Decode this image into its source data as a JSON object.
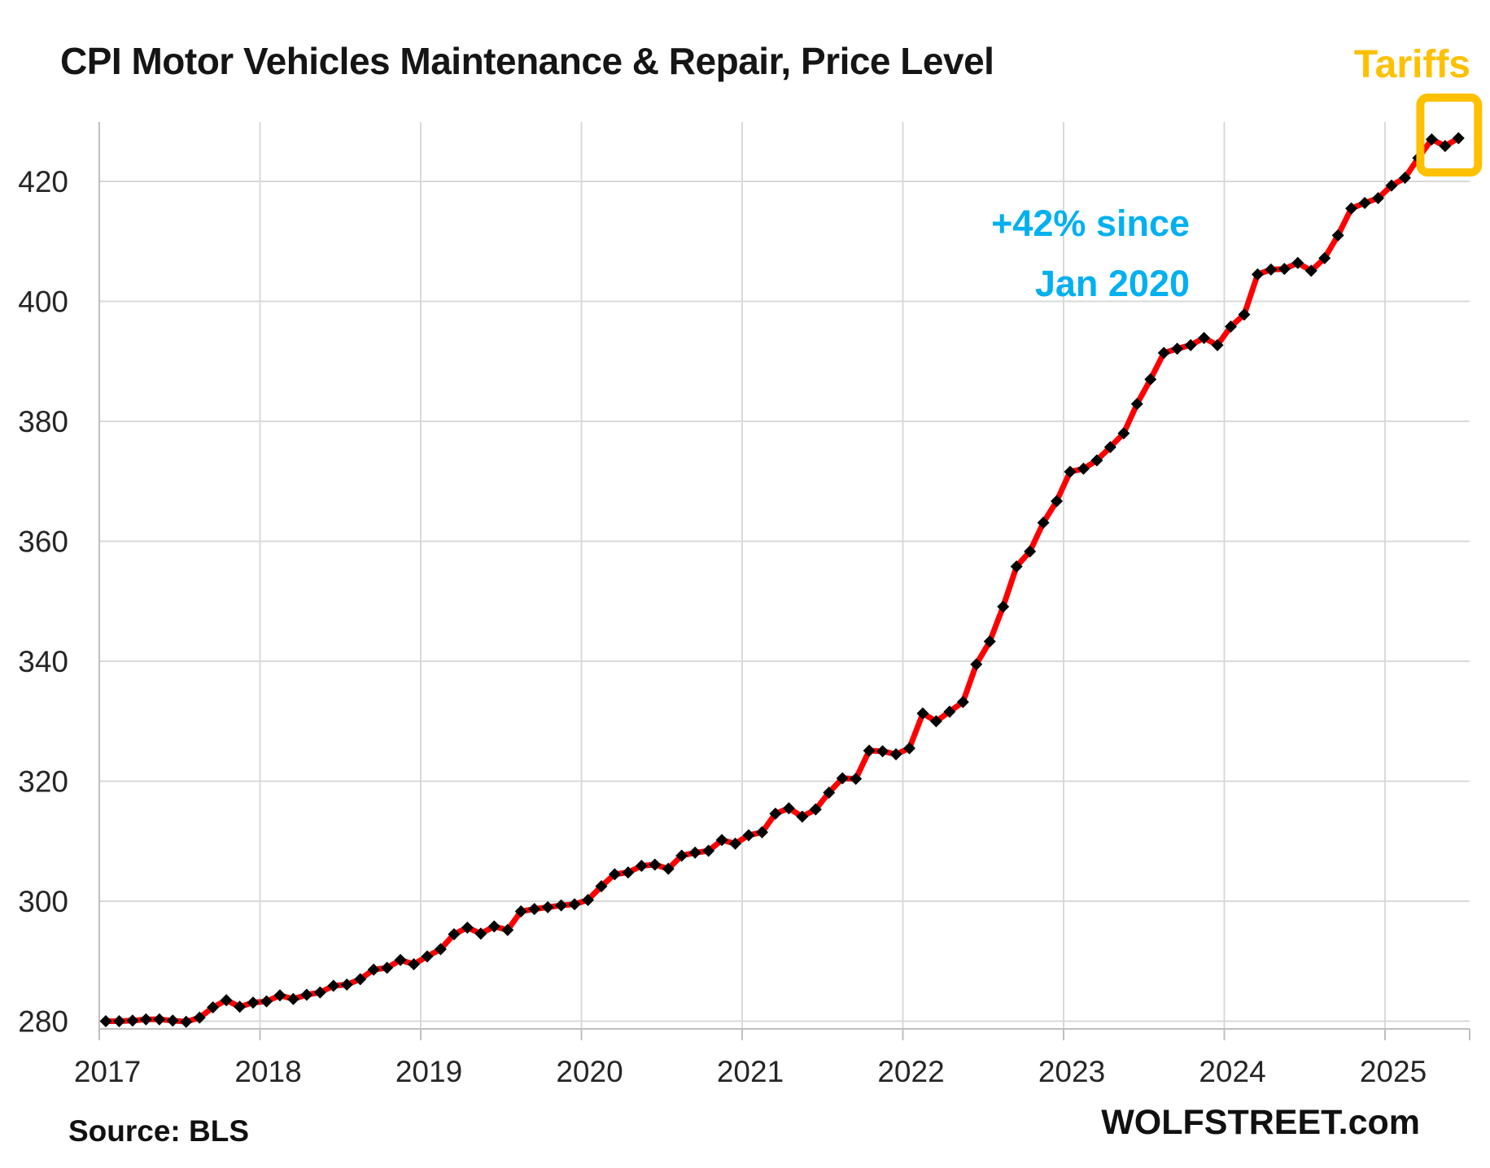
{
  "header": {
    "title": "CPI Motor Vehicles Maintenance & Repair, Price Level",
    "tariffs_label": "Tariffs"
  },
  "annotation": {
    "line1": "+42% since",
    "line2": "Jan 2020"
  },
  "footer": {
    "source": "Source: BLS",
    "site": "WOLFSTREET.com"
  },
  "colors": {
    "line": "#FF0000",
    "marker": "#000000",
    "grid": "#D9D9D9",
    "axis": "#BFBFBF",
    "annotation_blue": "#00B0F0",
    "tariffs_gold": "#FFC000",
    "title_text": "#151515",
    "tick_text": "#262626"
  },
  "chart_data": {
    "type": "line",
    "title": "CPI Motor Vehicles Maintenance & Repair, Price Level",
    "xlabel": "",
    "ylabel": "",
    "frequency": "monthly",
    "x_start": "2017-01",
    "x_end": "2025-06",
    "x_tick_labels": [
      "2017",
      "2018",
      "2019",
      "2020",
      "2021",
      "2022",
      "2023",
      "2024",
      "2025"
    ],
    "y_ticks": [
      280,
      300,
      320,
      340,
      360,
      380,
      400,
      420
    ],
    "ylim": [
      278.7,
      430.3
    ],
    "grid": true,
    "legend_position": "none",
    "series": [
      {
        "name": "CPI Motor Vehicles Maintenance & Repair",
        "marker": "diamond",
        "values": [
          280.0,
          280.0,
          280.1,
          280.3,
          280.3,
          280.1,
          279.9,
          280.6,
          282.3,
          283.5,
          282.4,
          283.1,
          283.3,
          284.3,
          283.7,
          284.4,
          284.8,
          285.9,
          286.1,
          287.0,
          288.6,
          288.9,
          290.2,
          289.5,
          290.8,
          292.0,
          294.5,
          295.6,
          294.6,
          295.8,
          295.2,
          298.3,
          298.7,
          299.0,
          299.3,
          299.5,
          300.2,
          302.5,
          304.5,
          304.8,
          305.9,
          306.1,
          305.4,
          307.6,
          308.1,
          308.4,
          310.2,
          309.6,
          311.0,
          311.5,
          314.6,
          315.5,
          314.1,
          315.3,
          318.1,
          320.5,
          320.4,
          325.1,
          325.0,
          324.5,
          325.5,
          331.3,
          330.0,
          331.6,
          333.2,
          339.5,
          343.3,
          349.1,
          355.8,
          358.3,
          363.1,
          366.7,
          371.6,
          372.1,
          373.5,
          375.7,
          378.0,
          382.9,
          387.0,
          391.4,
          392.1,
          392.7,
          393.9,
          392.7,
          395.8,
          397.8,
          404.5,
          405.3,
          405.4,
          406.4,
          405.1,
          407.2,
          411.0,
          415.5,
          416.4,
          417.2,
          419.3,
          420.6,
          423.9,
          427.0,
          425.9,
          427.2
        ]
      }
    ],
    "annotations": [
      {
        "text": "+42% since Jan 2020",
        "color": "#00B0F0"
      },
      {
        "text": "Tariffs",
        "color": "#FFC000",
        "type": "highlight-box",
        "covers": "2025-04 to 2025-06"
      }
    ]
  }
}
